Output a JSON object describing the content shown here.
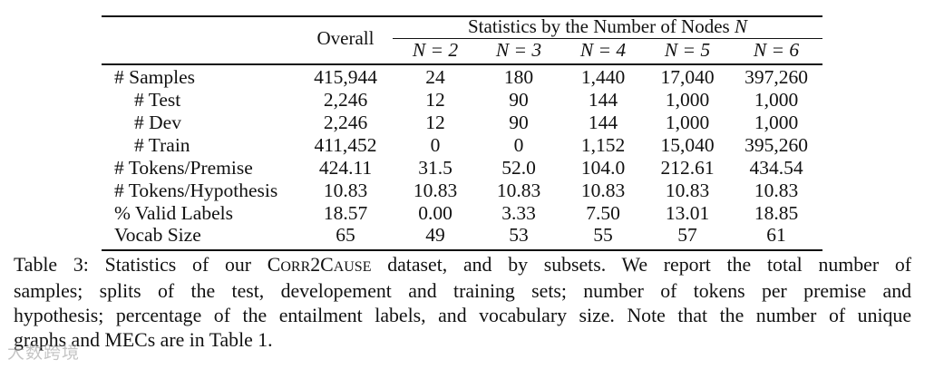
{
  "table": {
    "header": {
      "overall": "Overall",
      "group_prefix": "Statistics by the Number of Nodes ",
      "group_var": "N",
      "subcols": [
        "N = 2",
        "N = 3",
        "N = 4",
        "N = 5",
        "N = 6"
      ]
    },
    "rows": [
      {
        "label": "# Samples",
        "values": [
          "415,944",
          "24",
          "180",
          "1,440",
          "17,040",
          "397,260"
        ]
      },
      {
        "label": "# Test",
        "values": [
          "2,246",
          "12",
          "90",
          "144",
          "1,000",
          "1,000"
        ]
      },
      {
        "label": "# Dev",
        "values": [
          "2,246",
          "12",
          "90",
          "144",
          "1,000",
          "1,000"
        ]
      },
      {
        "label": "# Train",
        "values": [
          "411,452",
          "0",
          "0",
          "1,152",
          "15,040",
          "395,260"
        ]
      },
      {
        "label": "# Tokens/Premise",
        "values": [
          "424.11",
          "31.5",
          "52.0",
          "104.0",
          "212.61",
          "434.54"
        ]
      },
      {
        "label": "# Tokens/Hypothesis",
        "values": [
          "10.83",
          "10.83",
          "10.83",
          "10.83",
          "10.83",
          "10.83"
        ]
      },
      {
        "label": "% Valid Labels",
        "values": [
          "18.57",
          "0.00",
          "3.33",
          "7.50",
          "13.01",
          "18.85"
        ]
      },
      {
        "label": "Vocab Size",
        "values": [
          "65",
          "49",
          "53",
          "55",
          "57",
          "61"
        ]
      }
    ]
  },
  "caption": {
    "line1_a": "Table 3: Statistics of our ",
    "dataset_c1": "C",
    "dataset_c2": "ORR",
    "dataset_c3": "2C",
    "dataset_c4": "AUSE",
    "line1_b": " dataset, and by subsets. We report the total number of",
    "line2": "samples; splits of the test, developement and training sets; number of tokens per premise and",
    "line3": "hypothesis; percentage of the entailment labels, and vocabulary size. Note that the number of unique",
    "line4": "graphs and MECs are in Table 1."
  },
  "watermark": "大数跨境"
}
